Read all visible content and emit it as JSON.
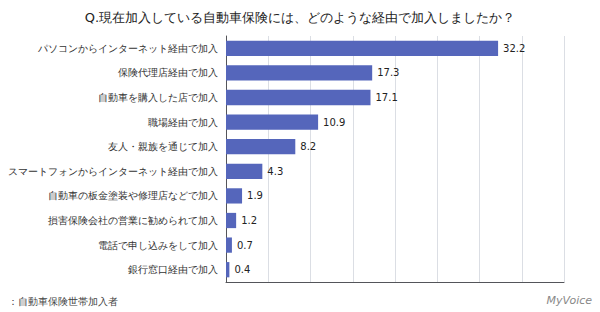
{
  "chart_data": {
    "type": "bar",
    "orientation": "horizontal",
    "title": "Q.現在加入している自動車保険には、どのような経由で加入しましたか？",
    "categories": [
      "パソコンからインターネット経由で加入",
      "保険代理店経由で加入",
      "自動車を購入した店で加入",
      "職場経由で加入",
      "友人・親族を通じて加入",
      "スマートフォンからインターネット経由で加入",
      "自動車の板金塗装や修理店などで加入",
      "損害保険会社の営業に勧められて加入",
      "電話で申し込みをして加入",
      "銀行窓口経由で加入"
    ],
    "values": [
      32.2,
      17.3,
      17.1,
      10.9,
      8.2,
      4.3,
      1.9,
      1.2,
      0.7,
      0.4
    ],
    "color": "#5566bb",
    "xlim": [
      0,
      40
    ],
    "xticks": [
      0,
      5,
      10,
      15,
      20,
      25,
      30,
      35,
      40
    ],
    "grid": true,
    "data_labels": true,
    "tick_labels": "y",
    "annotations": [
      "：自動車保険世帯加入者",
      "MyVoice"
    ]
  }
}
